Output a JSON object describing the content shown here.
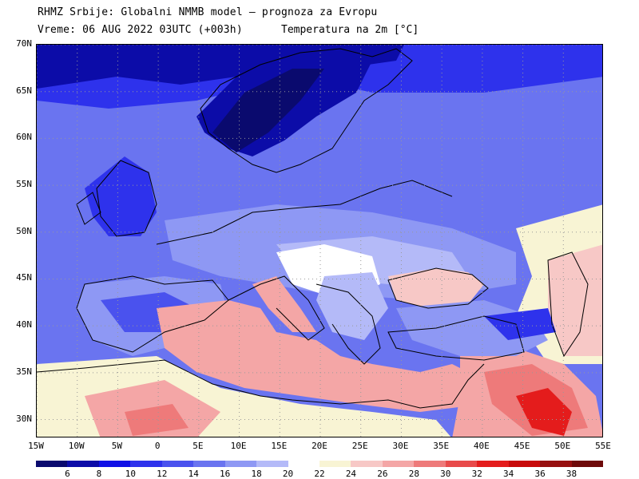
{
  "header": {
    "line1": "RHMZ Srbije: Globalni NMMB model — prognoza za Evropu",
    "line2_left": "Vreme: 06 AUG 2022 03UTC (+003h)",
    "line2_right": "Temperatura na 2m [°C]"
  },
  "map": {
    "lat_labels": [
      "70N",
      "65N",
      "60N",
      "55N",
      "50N",
      "45N",
      "40N",
      "35N",
      "30N"
    ],
    "lat_values": [
      70,
      65,
      60,
      55,
      50,
      45,
      40,
      35,
      30
    ],
    "lon_labels": [
      "15W",
      "10W",
      "5W",
      "0",
      "5E",
      "10E",
      "15E",
      "20E",
      "25E",
      "30E",
      "35E",
      "40E",
      "45E",
      "50E",
      "55E"
    ],
    "lon_values": [
      -15,
      -10,
      -5,
      0,
      5,
      10,
      15,
      20,
      25,
      30,
      35,
      40,
      45,
      50,
      55
    ],
    "lat_range": [
      28,
      70
    ],
    "lon_range": [
      -15,
      55
    ],
    "grid": true
  },
  "colorbar": {
    "labels": [
      "6",
      "8",
      "10",
      "12",
      "14",
      "16",
      "18",
      "20",
      "22",
      "24",
      "26",
      "28",
      "30",
      "32",
      "34",
      "36",
      "38"
    ],
    "colors": [
      "#0a0a6e",
      "#0c0ca8",
      "#1010e6",
      "#2e32ec",
      "#4a52ee",
      "#6a74f0",
      "#8e98f4",
      "#b4baf8",
      "#ffffff",
      "#f8f4d4",
      "#f7c8c6",
      "#f4a6a6",
      "#ee7a7a",
      "#e84a4a",
      "#e41c1c",
      "#c80a0a",
      "#961010",
      "#6e0a0a"
    ]
  },
  "colors": {
    "sea_mediterranean": "#f4a6a6",
    "cold": "#2e32ec",
    "cool": "#6a74f0",
    "mild": "#b4baf8",
    "neutral": "#ffffff",
    "warm": "#f8f4d4",
    "hot": "#ee7a7a",
    "very_hot": "#e41c1c",
    "borders": "#000000"
  }
}
